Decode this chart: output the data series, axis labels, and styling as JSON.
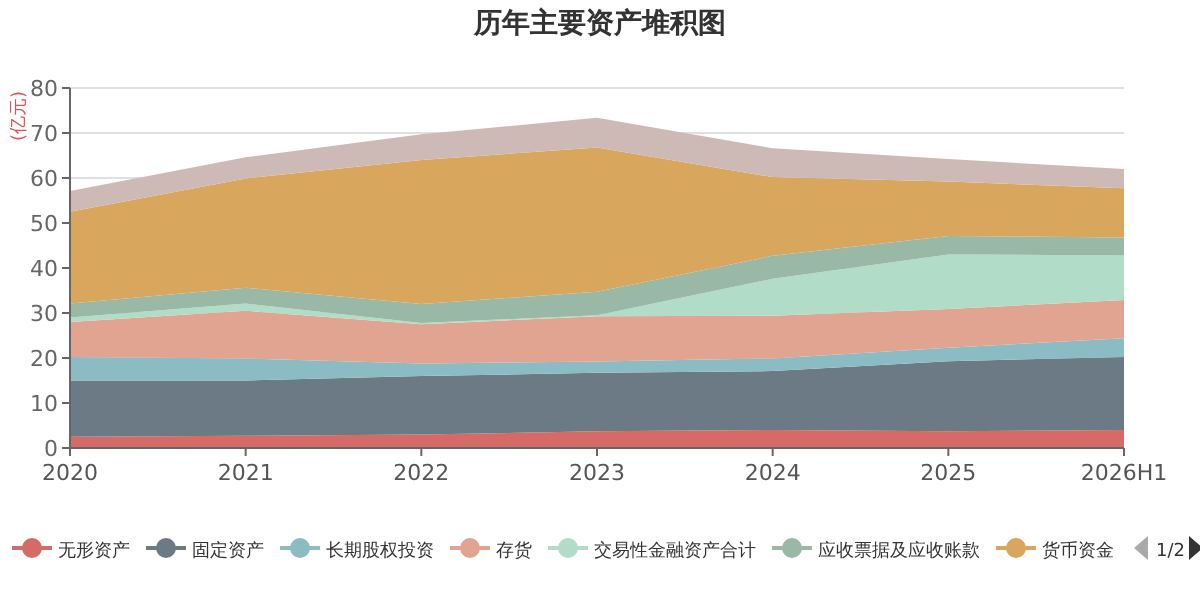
{
  "chart_data": {
    "type": "area",
    "title": "历年主要资产堆积图",
    "ylabel": "(亿元)",
    "categories": [
      "2020",
      "2021",
      "2022",
      "2023",
      "2024",
      "2025",
      "2026H1"
    ],
    "stacked": true,
    "ylim": [
      0,
      80
    ],
    "yticks": [
      0,
      10,
      20,
      30,
      40,
      50,
      60,
      70,
      80
    ],
    "grid": "y",
    "legend": "bottom",
    "annotations": [
      "1/2"
    ],
    "series": [
      {
        "name": "无形资产",
        "color": "#d66a66",
        "values": [
          2.5,
          2.7,
          3,
          3.7,
          4,
          3.7,
          4
        ]
      },
      {
        "name": "固定资产",
        "color": "#6b7a85",
        "values": [
          12.5,
          12.3,
          13,
          13,
          13.1,
          15.6,
          16.2
        ]
      },
      {
        "name": "长期股权投资",
        "color": "#8bbcc4",
        "values": [
          5.2,
          4.9,
          2.8,
          2.5,
          2.8,
          3,
          4.2
        ]
      },
      {
        "name": "存货",
        "color": "#e0a490",
        "values": [
          7.8,
          10.6,
          8.7,
          10.1,
          9.5,
          8.6,
          8.5
        ]
      },
      {
        "name": "交易性金融资产合计",
        "color": "#b0dcc8",
        "values": [
          1,
          1.6,
          0.3,
          0.2,
          8.2,
          12.1,
          9.9
        ]
      },
      {
        "name": "应收票据及应收账款",
        "color": "#9ab8a6",
        "values": [
          3.1,
          3.5,
          4.2,
          5.2,
          5.1,
          4.1,
          4
        ]
      },
      {
        "name": "货币资金",
        "color": "#d9a65e",
        "values": [
          20.4,
          24.3,
          32,
          32.1,
          17.5,
          12.1,
          10.9
        ]
      },
      {
        "color": "#cdb9b5",
        "values": [
          4.6,
          4.7,
          5.7,
          6.6,
          6.4,
          5,
          4.3
        ]
      }
    ]
  }
}
